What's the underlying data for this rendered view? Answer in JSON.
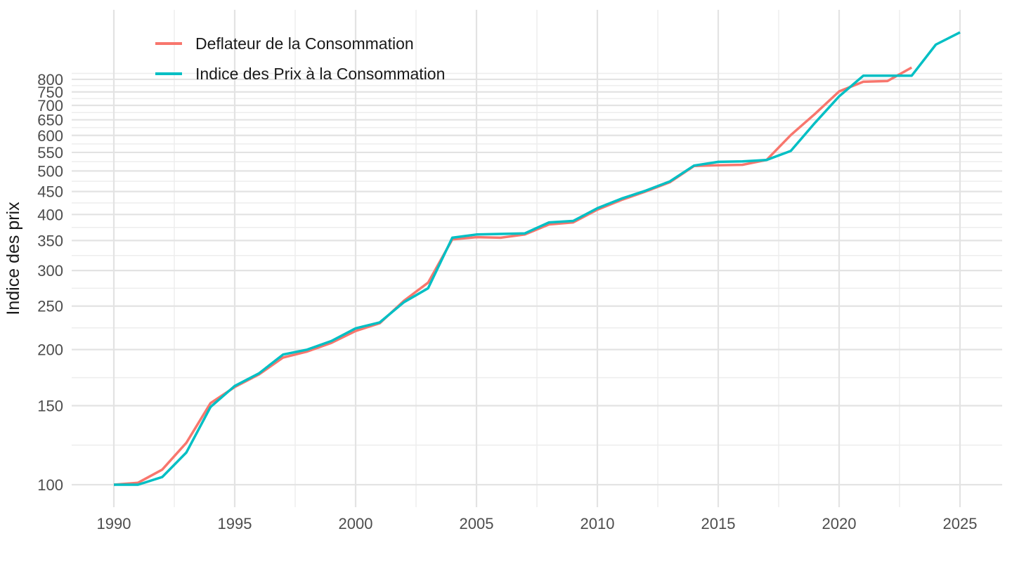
{
  "chart_data": {
    "type": "line",
    "title": "",
    "xlabel": "",
    "ylabel": "Indice des prix",
    "y_scale": "log",
    "xlim": [
      1988.25,
      2026.75
    ],
    "ylim": [
      97,
      1060
    ],
    "grid": true,
    "legend_position": "top-left-inside",
    "x_major_ticks": [
      1990,
      1995,
      2000,
      2005,
      2010,
      2015,
      2020,
      2025
    ],
    "x_minor_gridlines": [
      1992.5,
      1997.5,
      2002.5,
      2007.5,
      2012.5,
      2017.5,
      2022.5
    ],
    "y_major_ticks": [
      100,
      150,
      200,
      250,
      300,
      350,
      400,
      450,
      500,
      550,
      600,
      650,
      700,
      750,
      800
    ],
    "y_minor_gridlines": [
      122.5,
      173.2,
      223.6,
      273.9,
      324.0,
      374.2,
      424.3,
      474.3,
      524.4,
      574.5,
      624.5,
      674.5,
      724.6,
      774.6,
      824.6
    ],
    "series": [
      {
        "name": "Deflateur de la Consommation",
        "color": "#F8766D",
        "years": [
          1990,
          1991,
          1992,
          1993,
          1994,
          1995,
          1996,
          1997,
          1998,
          1999,
          2000,
          2001,
          2002,
          2003,
          2004,
          2005,
          2006,
          2007,
          2008,
          2009,
          2010,
          2011,
          2012,
          2013,
          2014,
          2015,
          2016,
          2017,
          2018,
          2019,
          2020,
          2021,
          2022,
          2023
        ],
        "values": [
          100,
          101,
          108,
          124,
          152,
          165,
          176,
          192,
          198,
          207,
          220,
          229,
          257,
          282,
          352,
          356,
          355,
          361,
          380,
          384,
          410,
          431,
          450,
          472,
          513,
          515,
          516,
          529,
          601,
          670,
          752,
          790,
          793,
          850
        ]
      },
      {
        "name": "Indice des Prix à la Consommation",
        "color": "#00BFC4",
        "years": [
          1990,
          1991,
          1992,
          1993,
          1994,
          1995,
          1996,
          1997,
          1998,
          1999,
          2000,
          2001,
          2002,
          2003,
          2004,
          2005,
          2006,
          2007,
          2008,
          2009,
          2010,
          2011,
          2012,
          2013,
          2014,
          2015,
          2016,
          2017,
          2018,
          2019,
          2020,
          2021,
          2022,
          2023,
          2024,
          2025
        ],
        "values": [
          100,
          100,
          104,
          118,
          149,
          166,
          177,
          195,
          200,
          209,
          223,
          230,
          255,
          274,
          355,
          361,
          362,
          363,
          384,
          387,
          413,
          434,
          452,
          474,
          514,
          524,
          525,
          529,
          554,
          640,
          733,
          815,
          815,
          815,
          956,
          1018
        ]
      }
    ],
    "colors": {
      "background": "#FFFFFF",
      "grid_major": "#E3E3E3",
      "grid_minor": "#EDEDED",
      "tick_text": "#4D4D4D",
      "title_text": "#1A1A1A"
    }
  }
}
